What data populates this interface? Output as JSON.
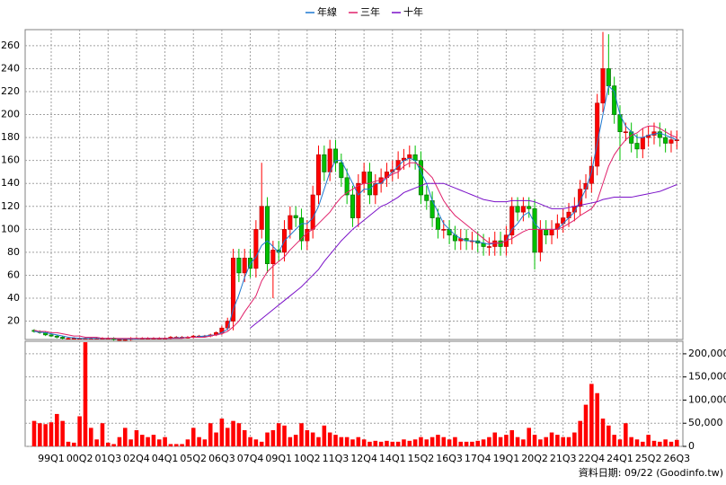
{
  "chart_data": [
    {
      "type": "candlestick",
      "legend": "top",
      "grid": true,
      "up_color": "#ff0000",
      "down_color": "#00c000",
      "categories": [
        null,
        null,
        null,
        "99Q1",
        null,
        null,
        null,
        null,
        "00Q2",
        null,
        null,
        null,
        null,
        "01Q3",
        null,
        null,
        null,
        null,
        "02Q4",
        null,
        null,
        null,
        null,
        "04Q1",
        null,
        null,
        null,
        null,
        "05Q2",
        null,
        null,
        null,
        null,
        "06Q3",
        null,
        null,
        null,
        null,
        "07Q4",
        null,
        null,
        null,
        null,
        "09Q1",
        null,
        null,
        null,
        null,
        "10Q2",
        null,
        null,
        null,
        null,
        "11Q3",
        null,
        null,
        null,
        null,
        "12Q4",
        null,
        null,
        null,
        null,
        "14Q1",
        null,
        null,
        null,
        null,
        "15Q2",
        null,
        null,
        null,
        null,
        "16Q3",
        null,
        null,
        null,
        null,
        "17Q4",
        null,
        null,
        null,
        null,
        "19Q1",
        null,
        null,
        null,
        null,
        "20Q2",
        null,
        null,
        null,
        null,
        "21Q3",
        null,
        null,
        null,
        null,
        "22Q4",
        null,
        null,
        null,
        null,
        "24Q1",
        null,
        null,
        null,
        null,
        "25Q2",
        null,
        null,
        null,
        null,
        "26Q3"
      ],
      "open": [
        12,
        11,
        10,
        8,
        7,
        6,
        5,
        5,
        5,
        5,
        5,
        5,
        5,
        5,
        5,
        4,
        4,
        4,
        5,
        5,
        5,
        5,
        5,
        5,
        5,
        6,
        6,
        6,
        6,
        7,
        7,
        7,
        8,
        10,
        14,
        20,
        75,
        62,
        75,
        66,
        100,
        120,
        70,
        82,
        80,
        100,
        112,
        110,
        90,
        100,
        130,
        165,
        150,
        170,
        158,
        145,
        130,
        110,
        140,
        150,
        130,
        140,
        145,
        150,
        152,
        160,
        162,
        165,
        160,
        130,
        125,
        110,
        100,
        100,
        95,
        90,
        92,
        90,
        90,
        88,
        85,
        85,
        90,
        85,
        95,
        120,
        115,
        120,
        118,
        80,
        100,
        95,
        100,
        105,
        110,
        115,
        120,
        135,
        140,
        155,
        210,
        240,
        225,
        200,
        185,
        185,
        175,
        170,
        180,
        182,
        185,
        180,
        175,
        178
      ],
      "high": [
        13,
        12,
        11,
        9,
        8,
        7,
        6,
        6,
        6,
        6,
        6,
        6,
        6,
        6,
        6,
        5,
        5,
        6,
        6,
        6,
        6,
        6,
        6,
        6,
        7,
        7,
        7,
        7,
        8,
        8,
        8,
        9,
        11,
        16,
        23,
        83,
        83,
        83,
        83,
        108,
        158,
        128,
        90,
        90,
        108,
        120,
        120,
        118,
        108,
        138,
        173,
        173,
        178,
        178,
        166,
        153,
        138,
        148,
        158,
        158,
        148,
        153,
        158,
        160,
        168,
        170,
        173,
        173,
        168,
        138,
        133,
        118,
        108,
        108,
        103,
        100,
        100,
        98,
        98,
        96,
        93,
        98,
        98,
        103,
        128,
        128,
        128,
        128,
        126,
        108,
        108,
        108,
        113,
        118,
        123,
        128,
        143,
        148,
        163,
        218,
        272,
        270,
        233,
        208,
        193,
        193,
        183,
        188,
        190,
        193,
        193,
        188,
        186,
        186
      ],
      "low": [
        10,
        9,
        7,
        6,
        5,
        4,
        4,
        4,
        4,
        4,
        4,
        4,
        4,
        4,
        3,
        3,
        3,
        3,
        4,
        4,
        4,
        4,
        4,
        4,
        4,
        5,
        5,
        5,
        5,
        6,
        6,
        6,
        7,
        8,
        12,
        12,
        54,
        54,
        58,
        58,
        92,
        62,
        40,
        72,
        72,
        92,
        102,
        82,
        82,
        92,
        122,
        142,
        142,
        150,
        137,
        122,
        102,
        102,
        132,
        122,
        122,
        132,
        137,
        142,
        144,
        152,
        154,
        152,
        122,
        117,
        102,
        92,
        92,
        87,
        82,
        82,
        82,
        82,
        80,
        77,
        77,
        77,
        77,
        77,
        87,
        107,
        107,
        110,
        65,
        72,
        87,
        87,
        92,
        97,
        102,
        107,
        112,
        127,
        132,
        147,
        202,
        217,
        192,
        160,
        177,
        167,
        162,
        162,
        172,
        174,
        172,
        167,
        167,
        170
      ],
      "close": [
        11,
        10,
        8,
        7,
        6,
        5,
        5,
        5,
        5,
        5,
        5,
        5,
        5,
        5,
        4,
        4,
        4,
        5,
        5,
        5,
        5,
        5,
        5,
        5,
        6,
        6,
        6,
        6,
        7,
        7,
        7,
        8,
        10,
        14,
        20,
        75,
        62,
        75,
        66,
        100,
        120,
        70,
        82,
        80,
        100,
        112,
        110,
        90,
        100,
        130,
        165,
        150,
        170,
        158,
        145,
        130,
        110,
        140,
        150,
        130,
        140,
        145,
        150,
        152,
        160,
        162,
        165,
        160,
        130,
        125,
        110,
        100,
        100,
        95,
        90,
        92,
        90,
        90,
        88,
        85,
        85,
        90,
        85,
        95,
        120,
        115,
        120,
        118,
        80,
        100,
        95,
        100,
        105,
        110,
        115,
        120,
        135,
        140,
        155,
        210,
        240,
        225,
        200,
        185,
        185,
        175,
        170,
        180,
        182,
        185,
        180,
        175,
        178,
        178
      ],
      "series": [
        {
          "name": "年線",
          "color": "#1e78d0",
          "values": [
            11,
            10.5,
            10,
            9,
            8,
            7,
            6,
            5.5,
            5,
            5,
            5,
            5,
            5,
            5,
            5,
            4.5,
            4.5,
            4.5,
            4.5,
            5,
            5,
            5,
            5,
            5,
            5,
            5.5,
            5.5,
            6,
            6,
            6.5,
            7,
            7.5,
            8,
            10,
            13,
            30,
            43,
            58,
            70,
            76,
            86,
            90,
            85,
            80,
            90,
            95,
            100,
            105,
            105,
            110,
            120,
            135,
            150,
            160,
            160,
            150,
            140,
            130,
            135,
            135,
            140,
            140,
            145,
            150,
            155,
            160,
            162,
            160,
            150,
            140,
            125,
            115,
            105,
            100,
            95,
            92,
            90,
            90,
            89,
            88,
            87,
            88,
            88,
            90,
            100,
            105,
            112,
            115,
            105,
            100,
            100,
            100,
            100,
            105,
            110,
            115,
            125,
            135,
            150,
            175,
            200,
            225,
            220,
            200,
            190,
            185,
            180,
            180,
            182,
            183,
            184,
            182,
            180,
            178
          ]
        },
        {
          "name": "三年",
          "color": "#e0206a",
          "values": [
            12,
            11,
            11,
            10,
            10,
            9,
            8,
            7,
            7,
            6,
            6,
            6,
            5,
            5,
            5,
            5,
            5,
            5,
            5,
            5,
            5,
            5,
            5,
            5,
            5,
            5,
            5,
            6,
            6,
            6,
            6,
            7,
            8,
            9,
            11,
            15,
            20,
            28,
            35,
            42,
            55,
            63,
            68,
            72,
            76,
            82,
            87,
            92,
            97,
            100,
            105,
            110,
            115,
            122,
            128,
            132,
            135,
            138,
            140,
            140,
            142,
            143,
            145,
            148,
            150,
            155,
            158,
            158,
            155,
            150,
            145,
            135,
            125,
            118,
            112,
            108,
            104,
            100,
            96,
            92,
            88,
            88,
            88,
            90,
            92,
            95,
            98,
            100,
            100,
            100,
            100,
            100,
            100,
            102,
            105,
            108,
            112,
            115,
            118,
            125,
            140,
            155,
            165,
            172,
            178,
            182,
            184,
            188,
            190,
            190,
            188,
            185,
            182,
            180
          ]
        },
        {
          "name": "十年",
          "color": "#7a10c8",
          "values": [
            null,
            null,
            null,
            null,
            null,
            null,
            null,
            null,
            null,
            null,
            null,
            null,
            null,
            null,
            null,
            null,
            null,
            null,
            null,
            null,
            null,
            null,
            null,
            null,
            null,
            null,
            null,
            null,
            null,
            null,
            null,
            null,
            null,
            null,
            null,
            null,
            null,
            null,
            14,
            18,
            22,
            26,
            30,
            34,
            38,
            42,
            46,
            50,
            55,
            60,
            65,
            72,
            78,
            84,
            90,
            95,
            100,
            104,
            108,
            112,
            116,
            120,
            122,
            125,
            128,
            132,
            134,
            136,
            138,
            140,
            140,
            140,
            140,
            138,
            136,
            134,
            132,
            130,
            128,
            126,
            125,
            124,
            124,
            124,
            125,
            125,
            125,
            125,
            124,
            122,
            120,
            118,
            118,
            118,
            119,
            120,
            121,
            122,
            123,
            124,
            126,
            127,
            128,
            128,
            128,
            128,
            129,
            130,
            131,
            132,
            133,
            135,
            137,
            139
          ]
        }
      ],
      "ylim": [
        4,
        274
      ],
      "yticks": [
        20,
        40,
        60,
        80,
        100,
        120,
        140,
        160,
        180,
        200,
        220,
        240,
        260
      ]
    },
    {
      "type": "bar",
      "color": "#ff0000",
      "grid": true,
      "values": [
        55000,
        50000,
        48000,
        52000,
        70000,
        55000,
        10000,
        8000,
        65000,
        225000,
        40000,
        15000,
        50000,
        8000,
        5000,
        20000,
        40000,
        15000,
        35000,
        25000,
        20000,
        25000,
        15000,
        20000,
        5000,
        5000,
        5000,
        15000,
        40000,
        20000,
        15000,
        50000,
        30000,
        60000,
        40000,
        55000,
        50000,
        35000,
        20000,
        15000,
        10000,
        30000,
        35000,
        50000,
        45000,
        20000,
        25000,
        50000,
        35000,
        30000,
        20000,
        45000,
        30000,
        25000,
        20000,
        20000,
        15000,
        20000,
        15000,
        10000,
        12000,
        10000,
        12000,
        10000,
        10000,
        15000,
        12000,
        15000,
        20000,
        15000,
        20000,
        25000,
        20000,
        15000,
        20000,
        10000,
        10000,
        10000,
        12000,
        15000,
        20000,
        30000,
        20000,
        25000,
        35000,
        20000,
        15000,
        40000,
        25000,
        15000,
        20000,
        30000,
        25000,
        20000,
        20000,
        30000,
        55000,
        90000,
        135000,
        115000,
        60000,
        45000,
        25000,
        15000,
        50000,
        20000,
        15000,
        10000,
        25000,
        12000,
        10000,
        15000,
        10000,
        14000
      ],
      "ylim": [
        0,
        227000
      ],
      "yticks": [
        0,
        {
          "value": 50000,
          "label": "50,000"
        },
        {
          "value": 100000,
          "label": "100,000"
        },
        {
          "value": 150000,
          "label": "150,000"
        },
        {
          "value": 200000,
          "label": "200,000"
        }
      ],
      "note": "資料日期: 09/22 (Goodinfo.tw)"
    }
  ]
}
